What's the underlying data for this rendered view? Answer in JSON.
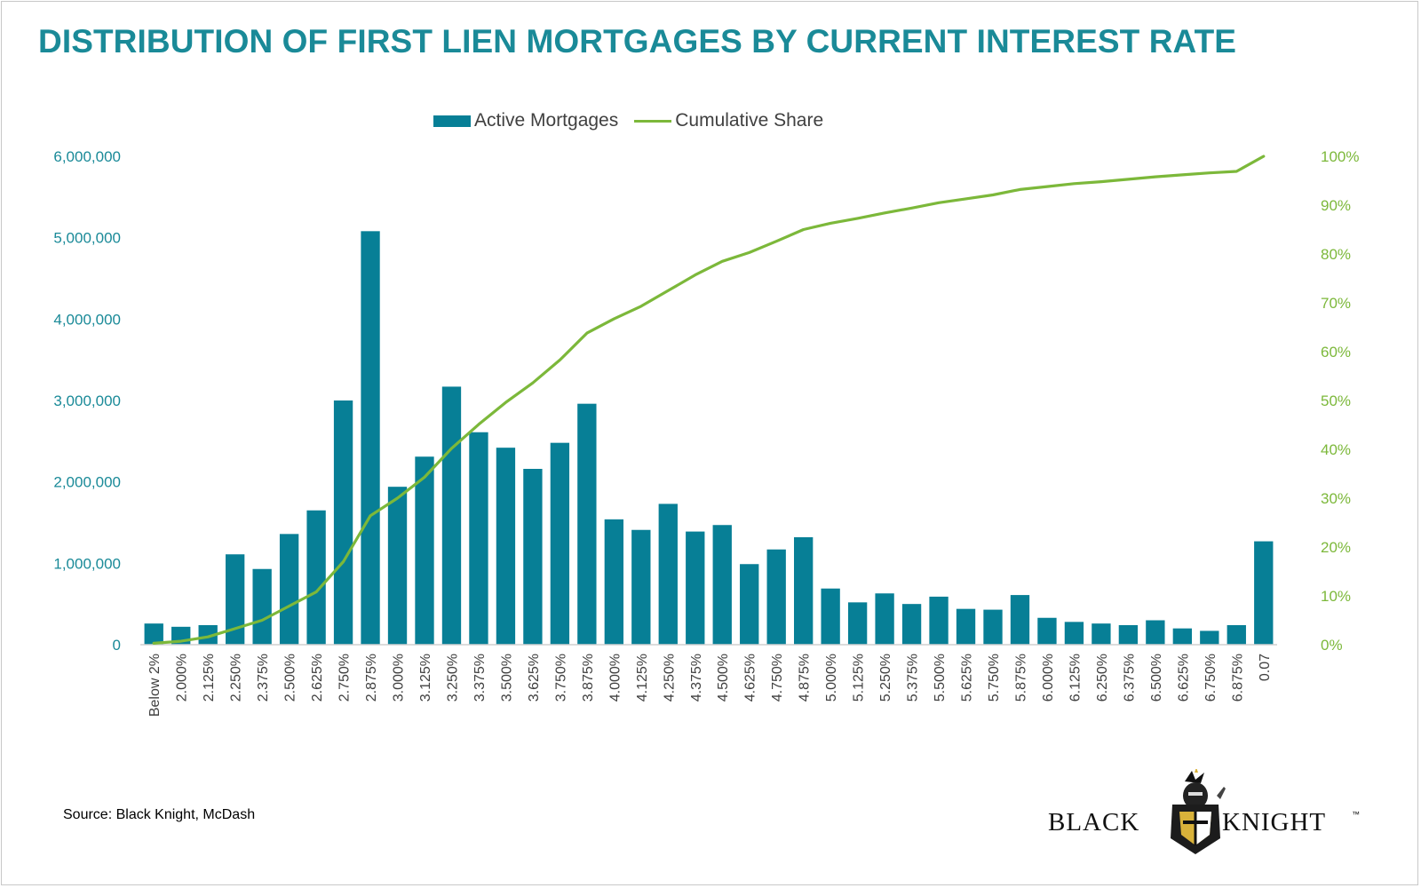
{
  "colors": {
    "title": "#1a8a98",
    "bar": "#077f96",
    "line": "#7cb83a",
    "left_axis": "#1a8a98",
    "right_axis": "#7cb83a",
    "tick_text": "#404040"
  },
  "source_text": "Source: Black Knight, McDash",
  "logo": {
    "left_word": "BLACK",
    "right_word": "KNIGHT",
    "mark": "™",
    "emblem": "knight-icon"
  },
  "chart_data": {
    "type": "bar",
    "title": "DISTRIBUTION OF FIRST LIEN MORTGAGES BY CURRENT INTEREST RATE",
    "xlabel": "",
    "ylabel": "",
    "categories": [
      "Below 2%",
      "2.000%",
      "2.125%",
      "2.250%",
      "2.375%",
      "2.500%",
      "2.625%",
      "2.750%",
      "2.875%",
      "3.000%",
      "3.125%",
      "3.250%",
      "3.375%",
      "3.500%",
      "3.625%",
      "3.750%",
      "3.875%",
      "4.000%",
      "4.125%",
      "4.250%",
      "4.375%",
      "4.500%",
      "4.625%",
      "4.750%",
      "4.875%",
      "5.000%",
      "5.125%",
      "5.250%",
      "5.375%",
      "5.500%",
      "5.625%",
      "5.750%",
      "5.875%",
      "6.000%",
      "6.125%",
      "6.250%",
      "6.375%",
      "6.500%",
      "6.625%",
      "6.750%",
      "6.875%",
      "0.07"
    ],
    "series": [
      {
        "name": "Active Mortgages",
        "type": "bar",
        "axis": "left",
        "values": [
          260000,
          220000,
          240000,
          1110000,
          930000,
          1360000,
          1650000,
          3000000,
          5080000,
          1940000,
          2310000,
          3170000,
          2610000,
          2420000,
          2160000,
          2480000,
          2960000,
          1540000,
          1410000,
          1730000,
          1390000,
          1470000,
          990000,
          1170000,
          1320000,
          690000,
          520000,
          630000,
          500000,
          590000,
          440000,
          430000,
          610000,
          330000,
          280000,
          260000,
          240000,
          300000,
          200000,
          170000,
          240000,
          1270000
        ]
      },
      {
        "name": "Cumulative Share",
        "type": "line",
        "axis": "right",
        "values": [
          0.3,
          0.7,
          1.6,
          3.3,
          5.0,
          7.9,
          10.8,
          17.0,
          26.4,
          30.0,
          34.3,
          40.2,
          45.1,
          49.6,
          53.6,
          58.3,
          63.8,
          66.7,
          69.3,
          72.5,
          75.7,
          78.5,
          80.3,
          82.6,
          85.0,
          86.3,
          87.3,
          88.4,
          89.4,
          90.5,
          91.3,
          92.1,
          93.2,
          93.8,
          94.4,
          94.8,
          95.3,
          95.8,
          96.2,
          96.6,
          96.9,
          100.0
        ]
      }
    ],
    "y_left": {
      "ylim": [
        0,
        6000000
      ],
      "ticks": [
        "0",
        "1,000,000",
        "2,000,000",
        "3,000,000",
        "4,000,000",
        "5,000,000",
        "6,000,000"
      ]
    },
    "y_right": {
      "ylim": [
        0,
        100
      ],
      "ticks": [
        "0%",
        "10%",
        "20%",
        "30%",
        "40%",
        "50%",
        "60%",
        "70%",
        "80%",
        "90%",
        "100%"
      ]
    },
    "legend": "top-center",
    "grid": false
  }
}
